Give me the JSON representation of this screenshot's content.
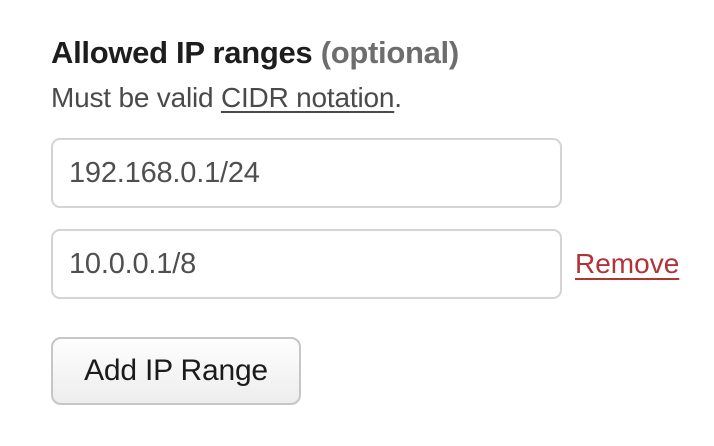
{
  "form": {
    "heading": {
      "title": "Allowed IP ranges",
      "optional_label": "(optional)"
    },
    "helper": {
      "prefix": "Must be valid ",
      "link_text": "CIDR notation",
      "suffix": "."
    },
    "ip_ranges": [
      {
        "value": "192.168.0.1/24"
      },
      {
        "value": "10.0.0.1/8",
        "remove_label": "Remove"
      }
    ],
    "add_button_label": "Add IP Range"
  },
  "colors": {
    "heading_text": "#1d1d1d",
    "optional_text": "#6d6d6d",
    "helper_text": "#4a4a4a",
    "input_text": "#4f4f4f",
    "input_border": "#d4d4d4",
    "remove_link": "#b03338",
    "button_border": "#c6c6c6",
    "button_text": "#1b1b1b",
    "background": "#ffffff"
  }
}
